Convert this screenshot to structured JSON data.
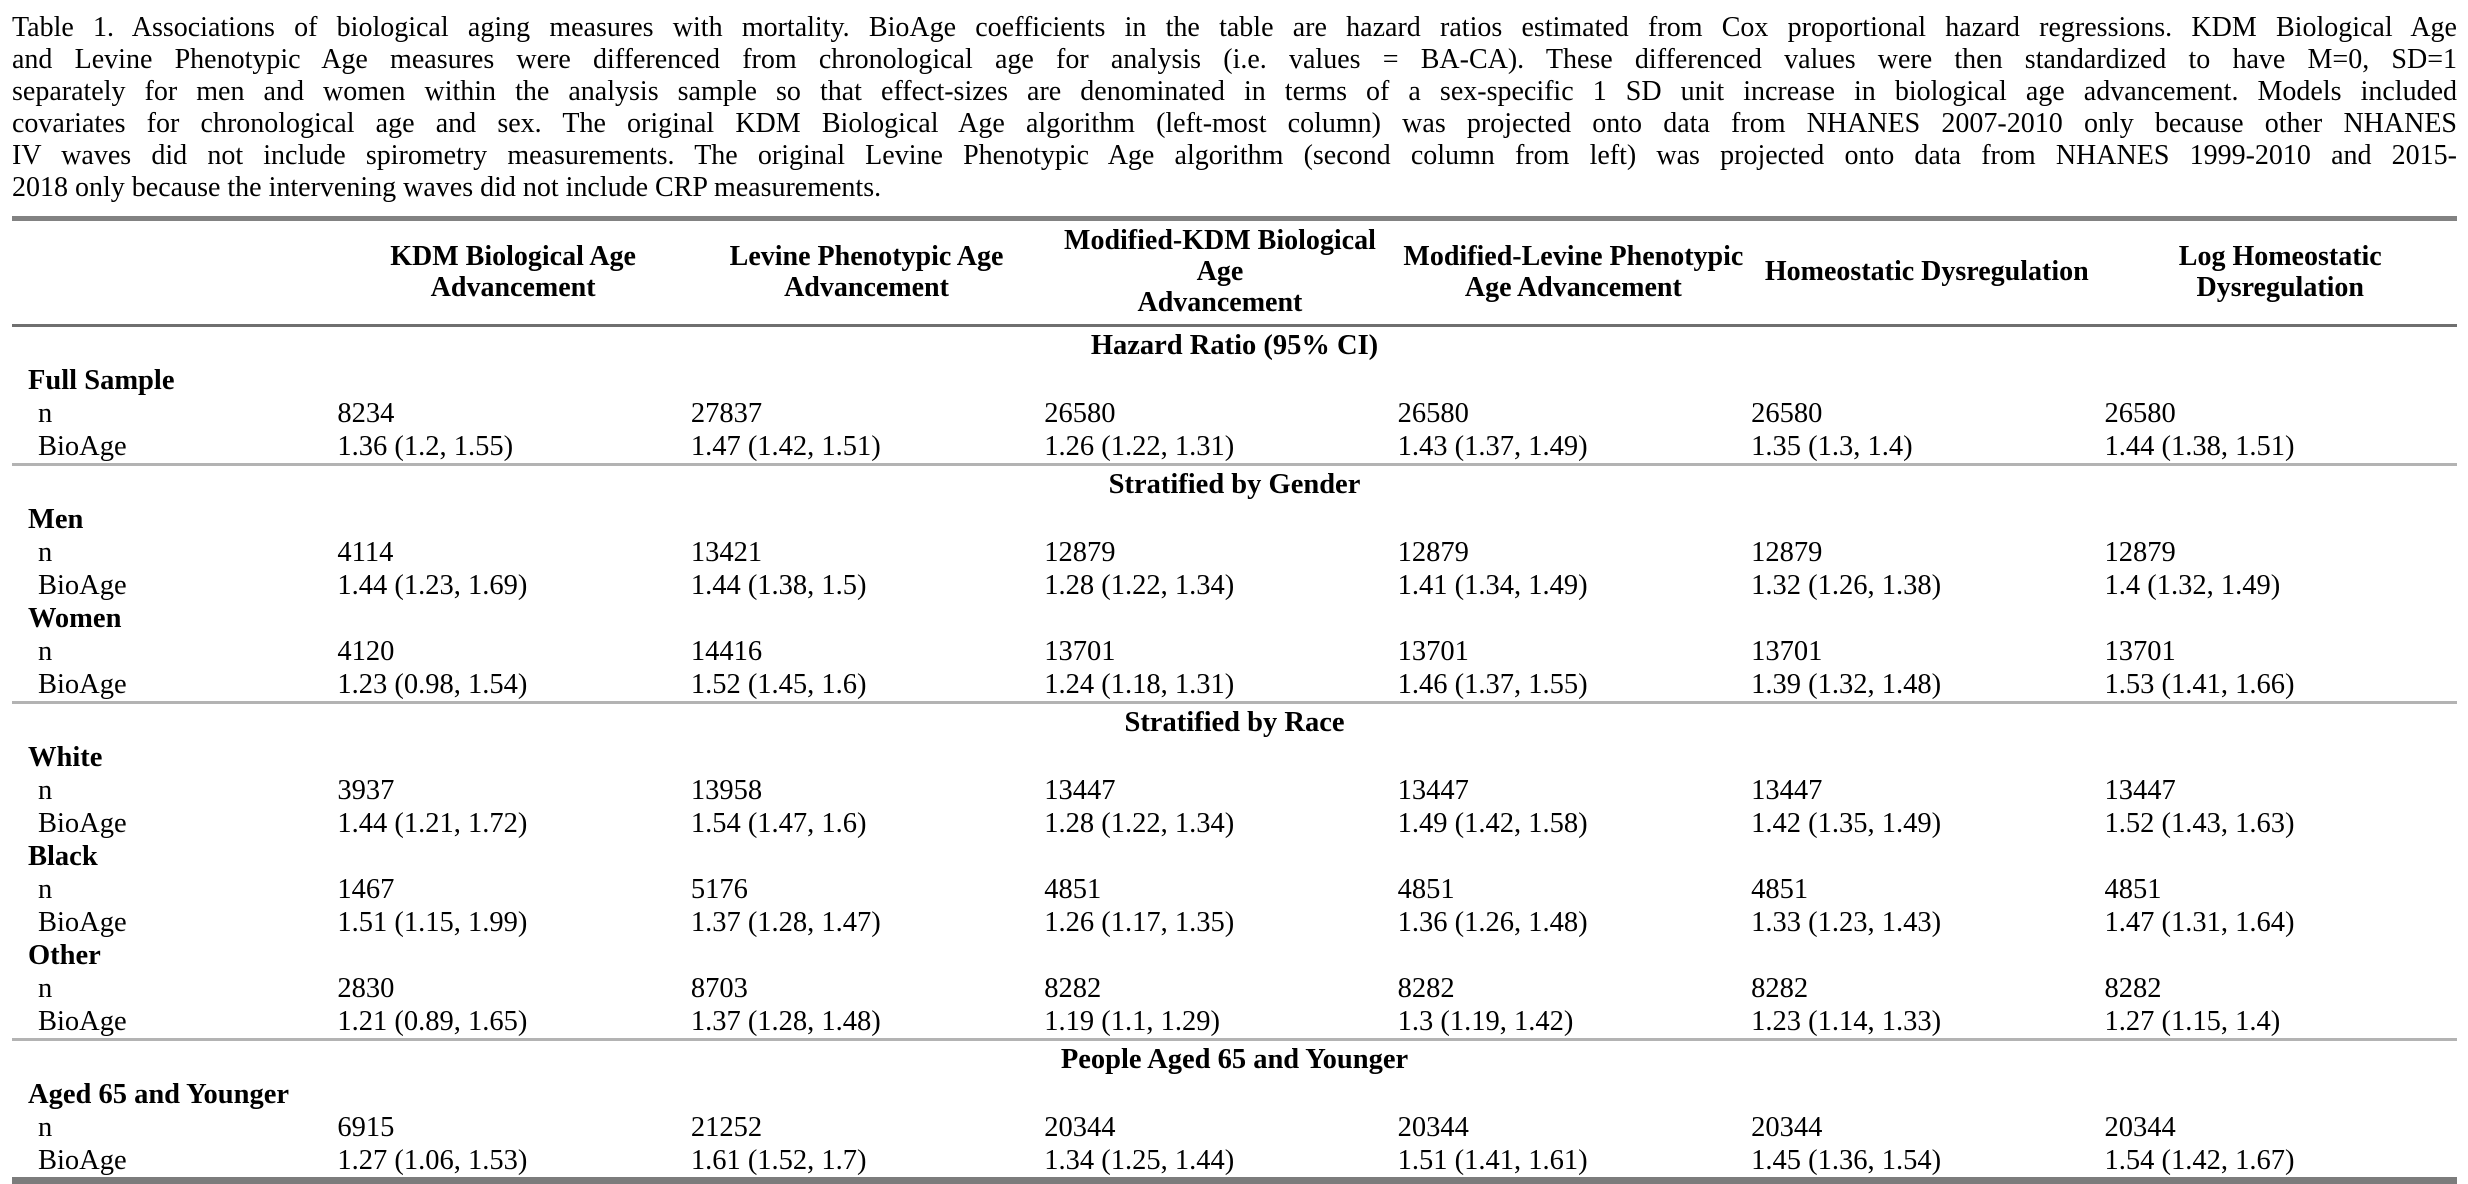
{
  "caption": {
    "lines": [
      "Table 1. Associations of biological aging measures with mortality. BioAge coefficients in the table are hazard ratios estimated from Cox proportional hazard regressions. KDM Biological Age",
      "and Levine Phenotypic Age measures were differenced from chronological age for analysis (i.e. values = BA-CA). These differenced values were then standardized to have M=0, SD=1",
      "separately for men and women within the analysis sample so that effect-sizes are denominated in terms of a sex-specific 1 SD unit increase in biological age advancement. Models included",
      "covariates for chronological age and sex. The original KDM Biological Age algorithm (left-most column) was projected onto data from NHANES 2007-2010 only because other NHANES",
      "IV waves did not include spirometry measurements. The original Levine Phenotypic Age algorithm (second column from left) was projected onto data from NHANES 1999-2010 and 2015-",
      "2018 only because the intervening waves did not include CRP measurements."
    ]
  },
  "table": {
    "stub_header": "",
    "columns": [
      "KDM Biological Age\nAdvancement",
      "Levine Phenotypic Age\nAdvancement",
      "Modified-KDM Biological Age\nAdvancement",
      "Modified-Levine Phenotypic\nAge Advancement",
      "Homeostatic Dysregulation",
      "Log Homeostatic\nDysregulation"
    ],
    "row_labels": {
      "n": "n",
      "bioage": "BioAge"
    },
    "sections": [
      {
        "band": "Hazard Ratio (95% CI)",
        "groups": [
          {
            "label": "Full Sample",
            "n": [
              "8234",
              "27837",
              "26580",
              "26580",
              "26580",
              "26580"
            ],
            "bioage": [
              "1.36 (1.2, 1.55)",
              "1.47 (1.42, 1.51)",
              "1.26 (1.22, 1.31)",
              "1.43 (1.37, 1.49)",
              "1.35 (1.3, 1.4)",
              "1.44 (1.38, 1.51)"
            ]
          }
        ]
      },
      {
        "band": "Stratified by Gender",
        "groups": [
          {
            "label": "Men",
            "n": [
              "4114",
              "13421",
              "12879",
              "12879",
              "12879",
              "12879"
            ],
            "bioage": [
              "1.44 (1.23, 1.69)",
              "1.44 (1.38, 1.5)",
              "1.28 (1.22, 1.34)",
              "1.41 (1.34, 1.49)",
              "1.32 (1.26, 1.38)",
              "1.4 (1.32, 1.49)"
            ]
          },
          {
            "label": "Women",
            "n": [
              "4120",
              "14416",
              "13701",
              "13701",
              "13701",
              "13701"
            ],
            "bioage": [
              "1.23 (0.98, 1.54)",
              "1.52 (1.45, 1.6)",
              "1.24 (1.18, 1.31)",
              "1.46 (1.37, 1.55)",
              "1.39 (1.32, 1.48)",
              "1.53 (1.41, 1.66)"
            ]
          }
        ]
      },
      {
        "band": "Stratified by Race",
        "groups": [
          {
            "label": "White",
            "n": [
              "3937",
              "13958",
              "13447",
              "13447",
              "13447",
              "13447"
            ],
            "bioage": [
              "1.44 (1.21, 1.72)",
              "1.54 (1.47, 1.6)",
              "1.28 (1.22, 1.34)",
              "1.49 (1.42, 1.58)",
              "1.42 (1.35, 1.49)",
              "1.52 (1.43, 1.63)"
            ]
          },
          {
            "label": "Black",
            "n": [
              "1467",
              "5176",
              "4851",
              "4851",
              "4851",
              "4851"
            ],
            "bioage": [
              "1.51 (1.15, 1.99)",
              "1.37 (1.28, 1.47)",
              "1.26 (1.17, 1.35)",
              "1.36 (1.26, 1.48)",
              "1.33 (1.23, 1.43)",
              "1.47 (1.31, 1.64)"
            ]
          },
          {
            "label": "Other",
            "n": [
              "2830",
              "8703",
              "8282",
              "8282",
              "8282",
              "8282"
            ],
            "bioage": [
              "1.21 (0.89, 1.65)",
              "1.37 (1.28, 1.48)",
              "1.19 (1.1, 1.29)",
              "1.3 (1.19, 1.42)",
              "1.23 (1.14, 1.33)",
              "1.27 (1.15, 1.4)"
            ]
          }
        ]
      },
      {
        "band": "People Aged 65 and Younger",
        "groups": [
          {
            "label": "Aged 65 and Younger",
            "n": [
              "6915",
              "21252",
              "20344",
              "20344",
              "20344",
              "20344"
            ],
            "bioage": [
              "1.27 (1.06, 1.53)",
              "1.61 (1.52, 1.7)",
              "1.34 (1.25, 1.44)",
              "1.51 (1.41, 1.61)",
              "1.45 (1.36, 1.54)",
              "1.54 (1.42, 1.67)"
            ]
          }
        ]
      }
    ]
  },
  "colors": {
    "text": "#000000",
    "rule_top": "#828282",
    "rule_header": "#6f6f6f",
    "rule_section": "#b3b3b3",
    "rule_bottom": "#7c7c7c",
    "background": "#ffffff"
  }
}
